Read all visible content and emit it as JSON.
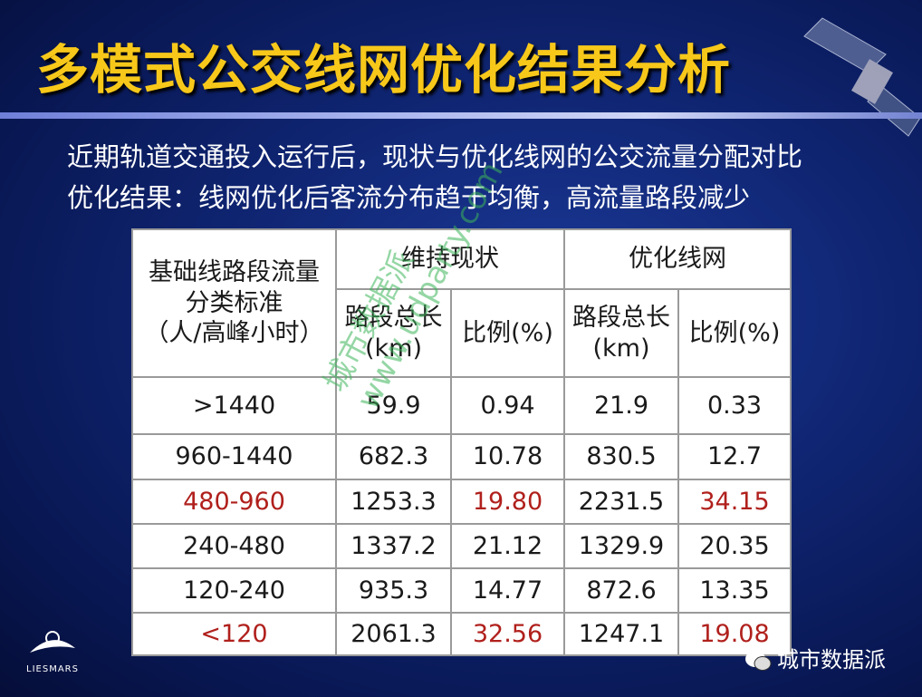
{
  "header": {
    "title": "多模式公交线网优化结果分析",
    "subtitle_lines": [
      "近期轨道交通投入运行后，现状与优化线网的公交流量分配对比",
      "优化结果：线网优化后客流分布趋于均衡，高流量路段减少"
    ]
  },
  "table": {
    "header": {
      "category_lines": [
        "基础线路段流量",
        "分类标准",
        "（人/高峰小时）"
      ],
      "groups": [
        "维持现状",
        "优化线网"
      ],
      "length_lines": [
        "路段总长",
        "(km)"
      ],
      "ratio": "比例(%)"
    },
    "rows": [
      [
        ">1440",
        "59.9",
        "0.94",
        "21.9",
        "0.33"
      ],
      [
        "960-1440",
        "682.3",
        "10.78",
        "830.5",
        "12.7"
      ],
      [
        "480-960",
        "1253.3",
        "19.80",
        "2231.5",
        "34.15"
      ],
      [
        "240-480",
        "1337.2",
        "21.12",
        "1329.9",
        "20.35"
      ],
      [
        "120-240",
        "935.3",
        "14.77",
        "872.6",
        "13.35"
      ],
      [
        "<120",
        "2061.3",
        "32.56",
        "1247.1",
        "19.08"
      ]
    ]
  },
  "watermark": [
    "城市数据派",
    "www.udparty.com"
  ],
  "logo": "LIESMARS",
  "brand": "城市数据派"
}
